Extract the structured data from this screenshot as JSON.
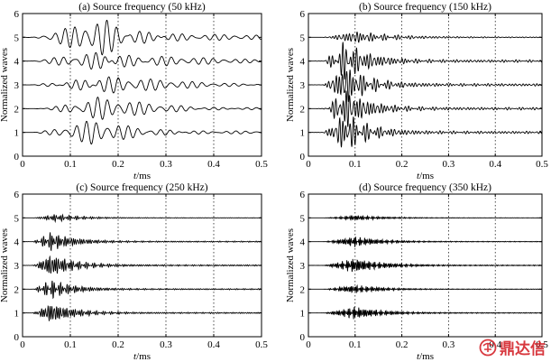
{
  "chart_data": [
    {
      "type": "line",
      "title": "(a) Source frequency (50 kHz)",
      "xlabel_italic": "t",
      "xlabel_unit": "/ms",
      "ylabel": "Normalized waves",
      "xlim": [
        0,
        0.5
      ],
      "ylim": [
        0,
        6
      ],
      "xticks": [
        "0",
        "0.1",
        "0.2",
        "0.3",
        "0.4",
        "0.5"
      ],
      "yticks": [
        "0",
        "1",
        "2",
        "3",
        "4",
        "5",
        "6"
      ],
      "grid_x": [
        0.1,
        0.2,
        0.3,
        0.4
      ],
      "grid": "vertical dotted",
      "source_frequency_khz": 50,
      "series": [
        {
          "offset": 1,
          "amplitude": 0.55,
          "onset_ms": 0.02,
          "peak_ms": 0.15,
          "decay": 0.12
        },
        {
          "offset": 2,
          "amplitude": 0.55,
          "onset_ms": 0.02,
          "peak_ms": 0.16,
          "decay": 0.12
        },
        {
          "offset": 3,
          "amplitude": 0.6,
          "onset_ms": 0.02,
          "peak_ms": 0.16,
          "decay": 0.12
        },
        {
          "offset": 4,
          "amplitude": 0.65,
          "onset_ms": 0.02,
          "peak_ms": 0.17,
          "decay": 0.12
        },
        {
          "offset": 5,
          "amplitude": 0.95,
          "onset_ms": 0.02,
          "peak_ms": 0.17,
          "decay": 0.1
        }
      ]
    },
    {
      "type": "line",
      "title": "(b) Source frequency (150 kHz)",
      "xlabel_italic": "t",
      "xlabel_unit": "/ms",
      "ylabel": "Normalized waves",
      "xlim": [
        0,
        0.5
      ],
      "ylim": [
        0,
        6
      ],
      "xticks": [
        "0",
        "0.1",
        "0.2",
        "0.3",
        "0.4",
        "0.5"
      ],
      "yticks": [
        "0",
        "1",
        "2",
        "3",
        "4",
        "5",
        "6"
      ],
      "grid_x": [
        0.1,
        0.2,
        0.3,
        0.4
      ],
      "grid": "vertical dotted",
      "source_frequency_khz": 150,
      "series": [
        {
          "offset": 1,
          "amplitude": 0.95,
          "onset_ms": 0.03,
          "peak_ms": 0.08,
          "decay": 0.05
        },
        {
          "offset": 2,
          "amplitude": 0.95,
          "onset_ms": 0.03,
          "peak_ms": 0.08,
          "decay": 0.05
        },
        {
          "offset": 3,
          "amplitude": 0.95,
          "onset_ms": 0.03,
          "peak_ms": 0.08,
          "decay": 0.05
        },
        {
          "offset": 4,
          "amplitude": 0.95,
          "onset_ms": 0.03,
          "peak_ms": 0.08,
          "decay": 0.05
        },
        {
          "offset": 5,
          "amplitude": 0.3,
          "onset_ms": 0.03,
          "peak_ms": 0.1,
          "decay": 0.08
        }
      ]
    },
    {
      "type": "line",
      "title": "(c) Source frequency (250 kHz)",
      "xlabel_italic": "t",
      "xlabel_unit": "/ms",
      "ylabel": "Normalized waves",
      "xlim": [
        0,
        0.5
      ],
      "ylim": [
        0,
        6
      ],
      "xticks": [
        "0",
        "0.1",
        "0.2",
        "0.3",
        "0.4",
        "0.5"
      ],
      "yticks": [
        "0",
        "1",
        "2",
        "3",
        "4",
        "5",
        "6"
      ],
      "grid_x": [
        0.1,
        0.2,
        0.3,
        0.4
      ],
      "grid": "vertical dotted",
      "source_frequency_khz": 250,
      "series": [
        {
          "offset": 1,
          "amplitude": 0.5,
          "onset_ms": 0.02,
          "peak_ms": 0.06,
          "decay": 0.05
        },
        {
          "offset": 2,
          "amplitude": 0.45,
          "onset_ms": 0.02,
          "peak_ms": 0.06,
          "decay": 0.05
        },
        {
          "offset": 3,
          "amplitude": 0.55,
          "onset_ms": 0.02,
          "peak_ms": 0.06,
          "decay": 0.05
        },
        {
          "offset": 4,
          "amplitude": 0.45,
          "onset_ms": 0.02,
          "peak_ms": 0.06,
          "decay": 0.05
        },
        {
          "offset": 5,
          "amplitude": 0.18,
          "onset_ms": 0.02,
          "peak_ms": 0.07,
          "decay": 0.06
        }
      ]
    },
    {
      "type": "line",
      "title": "(d) Source frequency (350 kHz)",
      "xlabel_italic": "t",
      "xlabel_unit": "/ms",
      "ylabel": "Normalized waves",
      "xlim": [
        0,
        0.5
      ],
      "ylim": [
        0,
        6
      ],
      "xticks": [
        "0",
        "0.1",
        "0.2",
        "0.3",
        "0.4",
        "0.5"
      ],
      "yticks": [
        "0",
        "1",
        "2",
        "3",
        "4",
        "5",
        "6"
      ],
      "grid_x": [
        0.1,
        0.2,
        0.3,
        0.4
      ],
      "grid": "vertical dotted",
      "source_frequency_khz": 350,
      "series": [
        {
          "offset": 1,
          "amplitude": 0.3,
          "onset_ms": 0.03,
          "peak_ms": 0.1,
          "decay": 0.06
        },
        {
          "offset": 2,
          "amplitude": 0.2,
          "onset_ms": 0.03,
          "peak_ms": 0.1,
          "decay": 0.06
        },
        {
          "offset": 3,
          "amplitude": 0.35,
          "onset_ms": 0.03,
          "peak_ms": 0.1,
          "decay": 0.06
        },
        {
          "offset": 4,
          "amplitude": 0.25,
          "onset_ms": 0.03,
          "peak_ms": 0.1,
          "decay": 0.06
        },
        {
          "offset": 5,
          "amplitude": 0.12,
          "onset_ms": 0.03,
          "peak_ms": 0.1,
          "decay": 0.07
        }
      ]
    }
  ],
  "watermark": {
    "text": "鼎达信",
    "color": "#d4232a"
  },
  "colors": {
    "trace": "#000000",
    "grid": "#000000",
    "axes": "#000000"
  }
}
